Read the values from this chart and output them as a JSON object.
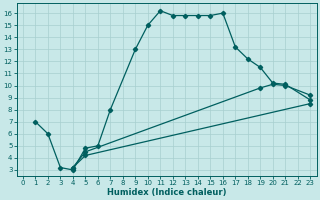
{
  "xlabel": "Humidex (Indice chaleur)",
  "xlim": [
    -0.5,
    23.5
  ],
  "ylim": [
    2.5,
    16.8
  ],
  "xticks": [
    0,
    1,
    2,
    3,
    4,
    5,
    6,
    7,
    8,
    9,
    10,
    11,
    12,
    13,
    14,
    15,
    16,
    17,
    18,
    19,
    20,
    21,
    22,
    23
  ],
  "yticks": [
    3,
    4,
    5,
    6,
    7,
    8,
    9,
    10,
    11,
    12,
    13,
    14,
    15,
    16
  ],
  "background_color": "#c8e8e8",
  "grid_color": "#a8cfcf",
  "line_color": "#005f5f",
  "curve1_x": [
    1,
    2,
    3,
    4,
    5,
    6,
    7,
    9,
    10,
    11,
    12,
    13,
    14,
    15,
    16,
    17,
    18,
    19,
    20,
    21,
    23
  ],
  "curve1_y": [
    7.0,
    6.0,
    3.2,
    3.0,
    4.8,
    5.0,
    8.0,
    13.0,
    15.0,
    16.2,
    15.8,
    15.8,
    15.8,
    15.8,
    16.0,
    13.2,
    12.2,
    11.5,
    10.2,
    10.1,
    8.8
  ],
  "curve2_x": [
    4,
    5,
    23
  ],
  "curve2_y": [
    3.2,
    4.2,
    8.5
  ],
  "curve3_x": [
    4,
    5,
    19,
    20,
    21,
    23
  ],
  "curve3_y": [
    3.2,
    4.5,
    9.8,
    10.1,
    10.0,
    9.2
  ],
  "marker": "D",
  "marker_size": 2.2,
  "linewidth": 0.9,
  "tick_fontsize": 5.0,
  "xlabel_fontsize": 6.0
}
